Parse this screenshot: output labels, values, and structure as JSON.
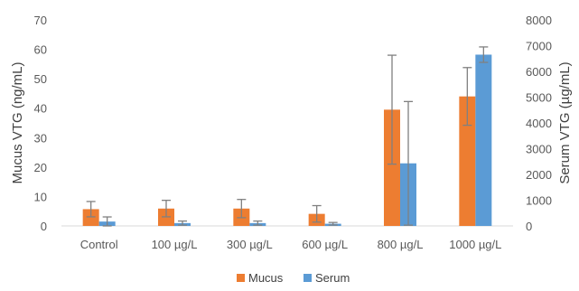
{
  "chart_data": {
    "type": "bar",
    "categories": [
      "Control",
      "100 µg/L",
      "300 µg/L",
      "600 µg/L",
      "800 µg/L",
      "1000 µg/L"
    ],
    "series": [
      {
        "name": "Mucus",
        "axis": "left",
        "color": "#ED7D31",
        "values": [
          5.7,
          5.9,
          5.9,
          4.1,
          39.5,
          44
        ],
        "error": [
          2.6,
          2.8,
          3.1,
          2.8,
          18.5,
          9.8
        ]
      },
      {
        "name": "Serum",
        "axis": "right",
        "color": "#5B9BD5",
        "values": [
          170,
          110,
          110,
          85,
          2430,
          6650
        ],
        "error": [
          180,
          80,
          80,
          50,
          2400,
          300
        ]
      }
    ],
    "y_left": {
      "label": "Mucus VTG (ng/mL)",
      "lim": [
        0,
        70
      ],
      "ticks": [
        "0",
        "10",
        "20",
        "30",
        "40",
        "50",
        "60",
        "70"
      ]
    },
    "y_right": {
      "label": "Serum VTG (µg/mL)",
      "lim": [
        0,
        8000
      ],
      "ticks": [
        "0",
        "1000",
        "2000",
        "3000",
        "4000",
        "5000",
        "6000",
        "7000",
        "8000"
      ]
    },
    "xlabel": "",
    "title": "",
    "grid": false,
    "legend": "bottom",
    "error_bar_color": "#808080"
  }
}
